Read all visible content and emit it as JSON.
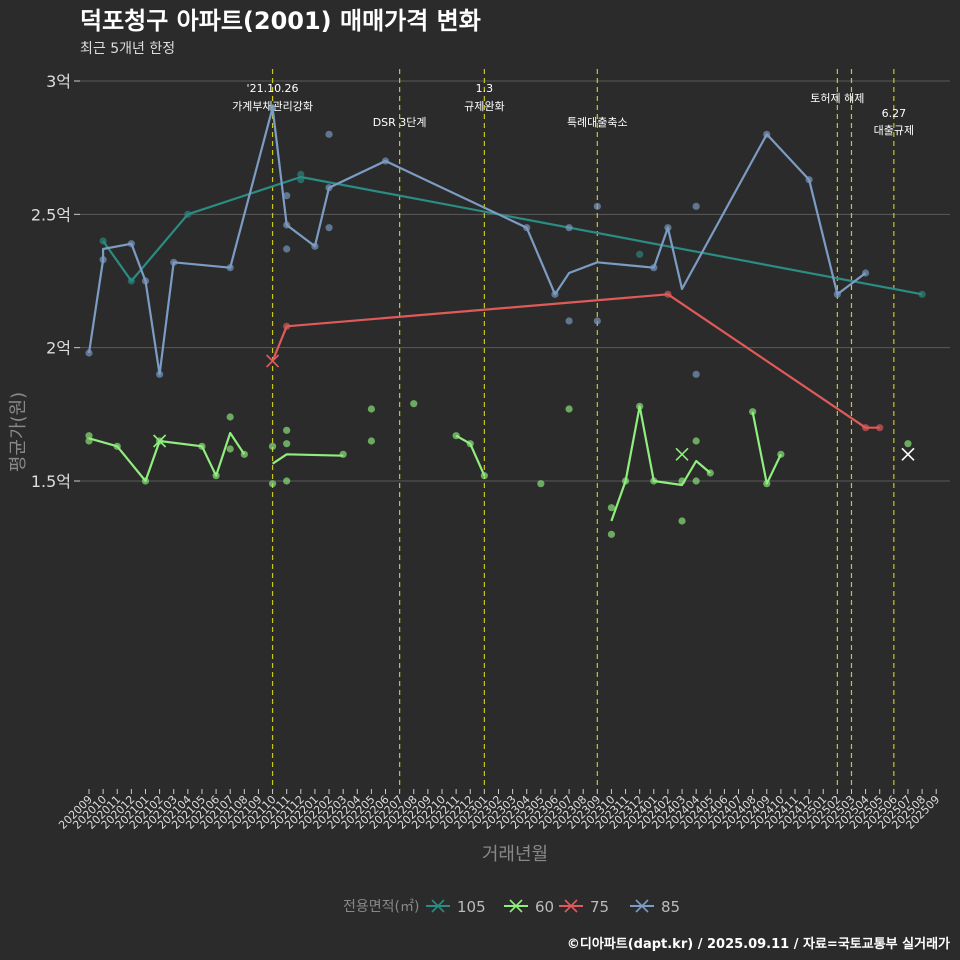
{
  "chart_data": {
    "type": "line",
    "title": "덕포청구 아파트(2001) 매매가격 변화",
    "subtitle": "최근 5개년 한정",
    "xlabel": "거래년월",
    "ylabel": "평균가(원)",
    "ylim": [
      12000,
      30500
    ],
    "y_ticks": [
      {
        "value": 15000,
        "label": "1.5억"
      },
      {
        "value": 20000,
        "label": "2억"
      },
      {
        "value": 25000,
        "label": "2.5억"
      },
      {
        "value": 30000,
        "label": "3억"
      }
    ],
    "x_ticks": [
      "202009",
      "202010",
      "202011",
      "202012",
      "202101",
      "202102",
      "202103",
      "202104",
      "202105",
      "202106",
      "202107",
      "202108",
      "202109",
      "202110",
      "202111",
      "202112",
      "202201",
      "202202",
      "202203",
      "202204",
      "202205",
      "202206",
      "202207",
      "202208",
      "202209",
      "202210",
      "202211",
      "202212",
      "202301",
      "202302",
      "202303",
      "202304",
      "202305",
      "202306",
      "202307",
      "202308",
      "202309",
      "202310",
      "202311",
      "202312",
      "202401",
      "202402",
      "202403",
      "202404",
      "202405",
      "202406",
      "202407",
      "202408",
      "202409",
      "202410",
      "202411",
      "202412",
      "202501",
      "202502",
      "202503",
      "202504",
      "202505",
      "202506",
      "202507",
      "202508",
      "202509"
    ],
    "grid": true,
    "legend_title": "전용면적(㎡)",
    "legend_position": "bottom",
    "events": [
      {
        "x": 13,
        "label": "'21.10.26\n가계부채관리강화"
      },
      {
        "x": 22,
        "label": "DSR 3단계"
      },
      {
        "x": 28,
        "label": "1.3\n규제완화"
      },
      {
        "x": 36,
        "label": "특례대출축소"
      },
      {
        "x": 53,
        "label": "토허제 해제"
      },
      {
        "x": 54,
        "label": ""
      },
      {
        "x": 57,
        "label": "6.27\n대출규제"
      }
    ],
    "series": [
      {
        "name": "105",
        "color": "#2a8c82",
        "line": [
          [
            1,
            24000
          ],
          [
            3,
            22500
          ],
          [
            7,
            25000
          ],
          [
            15,
            26400
          ],
          [
            59,
            22000
          ]
        ],
        "points": [
          [
            1,
            24000
          ],
          [
            3,
            22500
          ],
          [
            7,
            25000
          ],
          [
            15,
            26500
          ],
          [
            15,
            26300
          ],
          [
            39,
            23500
          ],
          [
            59,
            22000
          ]
        ],
        "cross": []
      },
      {
        "name": "60",
        "color": "#90ee7e",
        "line": [
          [
            0,
            16600
          ],
          [
            2,
            16300
          ],
          [
            4,
            15000
          ],
          [
            5,
            16500
          ],
          [
            8,
            16300
          ],
          [
            9,
            15200
          ],
          [
            10,
            16800
          ],
          [
            11,
            16000
          ]
        ],
        "line2": [
          [
            13,
            15650
          ],
          [
            14,
            16000
          ],
          [
            18,
            15950
          ]
        ],
        "line3": [
          [
            26,
            16700
          ],
          [
            27,
            16400
          ],
          [
            28,
            15200
          ]
        ],
        "line4": [
          [
            37,
            13500
          ],
          [
            38,
            15000
          ],
          [
            39,
            17800
          ],
          [
            40,
            15000
          ],
          [
            42,
            14850
          ],
          [
            43,
            15750
          ],
          [
            44,
            15300
          ]
        ],
        "line5": [
          [
            47,
            17600
          ],
          [
            48,
            14900
          ],
          [
            49,
            16000
          ]
        ],
        "points": [
          [
            0,
            16700
          ],
          [
            0,
            16500
          ],
          [
            2,
            16300
          ],
          [
            4,
            15000
          ],
          [
            5,
            16500
          ],
          [
            8,
            16300
          ],
          [
            9,
            15200
          ],
          [
            10,
            17400
          ],
          [
            10,
            16200
          ],
          [
            11,
            16000
          ],
          [
            13,
            16300
          ],
          [
            13,
            14900
          ],
          [
            14,
            16900
          ],
          [
            14,
            16400
          ],
          [
            14,
            15000
          ],
          [
            18,
            16000
          ],
          [
            20,
            17700
          ],
          [
            20,
            16500
          ],
          [
            23,
            17900
          ],
          [
            26,
            16700
          ],
          [
            27,
            16400
          ],
          [
            28,
            15200
          ],
          [
            32,
            14900
          ],
          [
            34,
            17700
          ],
          [
            37,
            14000
          ],
          [
            37,
            13000
          ],
          [
            38,
            15000
          ],
          [
            39,
            17800
          ],
          [
            40,
            15000
          ],
          [
            42,
            13500
          ],
          [
            42,
            15000
          ],
          [
            43,
            16500
          ],
          [
            43,
            15000
          ],
          [
            44,
            15300
          ],
          [
            47,
            17600
          ],
          [
            48,
            14900
          ],
          [
            49,
            16000
          ],
          [
            58,
            16400
          ]
        ],
        "cross": [
          [
            5,
            16500
          ],
          [
            42,
            16000
          ],
          [
            58,
            16000
          ]
        ]
      },
      {
        "name": "75",
        "color": "#e05a5a",
        "line": [
          [
            13,
            19500
          ],
          [
            14,
            20800
          ],
          [
            41,
            22000
          ],
          [
            55,
            17000
          ],
          [
            56,
            17000
          ]
        ],
        "points": [
          [
            14,
            20800
          ],
          [
            41,
            22000
          ],
          [
            55,
            17000
          ],
          [
            56,
            17000
          ]
        ],
        "cross": [
          [
            13,
            19500
          ]
        ]
      },
      {
        "name": "85",
        "color": "#7c9cc4",
        "line": [
          [
            0,
            19800
          ],
          [
            1,
            23300
          ],
          [
            1,
            23700
          ],
          [
            3,
            23900
          ],
          [
            4,
            22500
          ],
          [
            5,
            19000
          ],
          [
            6,
            23200
          ],
          [
            10,
            23000
          ],
          [
            13,
            29000
          ],
          [
            14,
            24600
          ],
          [
            16,
            23800
          ],
          [
            17,
            26000
          ],
          [
            21,
            27000
          ],
          [
            31,
            24500
          ],
          [
            33,
            22000
          ],
          [
            34,
            22800
          ],
          [
            36,
            23200
          ],
          [
            40,
            23000
          ],
          [
            41,
            24500
          ],
          [
            42,
            22200
          ],
          [
            48,
            28000
          ],
          [
            51,
            26300
          ],
          [
            53,
            22000
          ],
          [
            55,
            22800
          ]
        ],
        "points": [
          [
            0,
            19800
          ],
          [
            1,
            23300
          ],
          [
            3,
            23900
          ],
          [
            4,
            22500
          ],
          [
            5,
            19000
          ],
          [
            6,
            23200
          ],
          [
            10,
            23000
          ],
          [
            13,
            29000
          ],
          [
            14,
            25700
          ],
          [
            14,
            24600
          ],
          [
            14,
            23700
          ],
          [
            16,
            23800
          ],
          [
            17,
            28000
          ],
          [
            17,
            26000
          ],
          [
            17,
            24500
          ],
          [
            21,
            27000
          ],
          [
            31,
            24500
          ],
          [
            33,
            22000
          ],
          [
            34,
            24500
          ],
          [
            34,
            21000
          ],
          [
            36,
            25300
          ],
          [
            36,
            21000
          ],
          [
            40,
            23000
          ],
          [
            41,
            24500
          ],
          [
            43,
            25300
          ],
          [
            43,
            19000
          ],
          [
            48,
            28000
          ],
          [
            51,
            26300
          ],
          [
            53,
            22000
          ],
          [
            55,
            22800
          ]
        ],
        "cross": []
      }
    ]
  },
  "footer": {
    "credit": "©디아파트(dapt.kr) / 2025.09.11 / 자료=국토교통부 실거래가"
  }
}
